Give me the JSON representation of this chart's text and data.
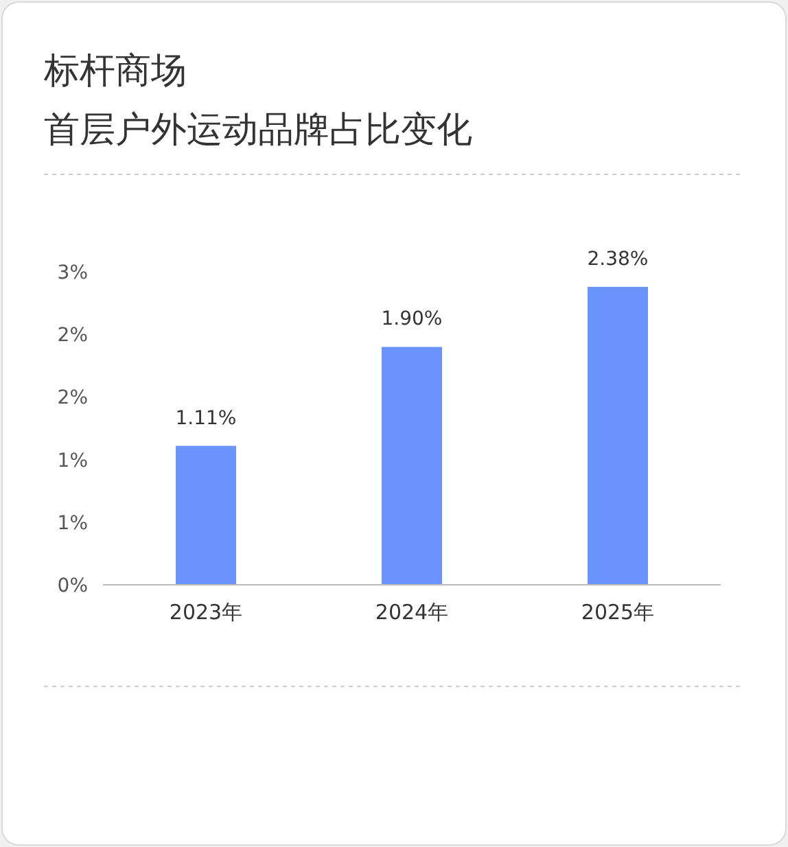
{
  "chart_data": {
    "type": "bar",
    "title": "标杆商场",
    "subtitle": "首层户外运动品牌占比变化",
    "categories": [
      "2023年",
      "2024年",
      "2025年"
    ],
    "values": [
      1.11,
      1.9,
      2.38
    ],
    "value_labels": [
      "1.11%",
      "1.90%",
      "2.38%"
    ],
    "color": "#6b94ff",
    "ylim": [
      0,
      2.5
    ],
    "yticks": [
      {
        "value": 0,
        "label": "0%"
      },
      {
        "value": 0.5,
        "label": "1%"
      },
      {
        "value": 1,
        "label": "1%"
      },
      {
        "value": 1.5,
        "label": "2%"
      },
      {
        "value": 2,
        "label": "2%"
      },
      {
        "value": 2.5,
        "label": "3%"
      }
    ],
    "grid": false
  }
}
